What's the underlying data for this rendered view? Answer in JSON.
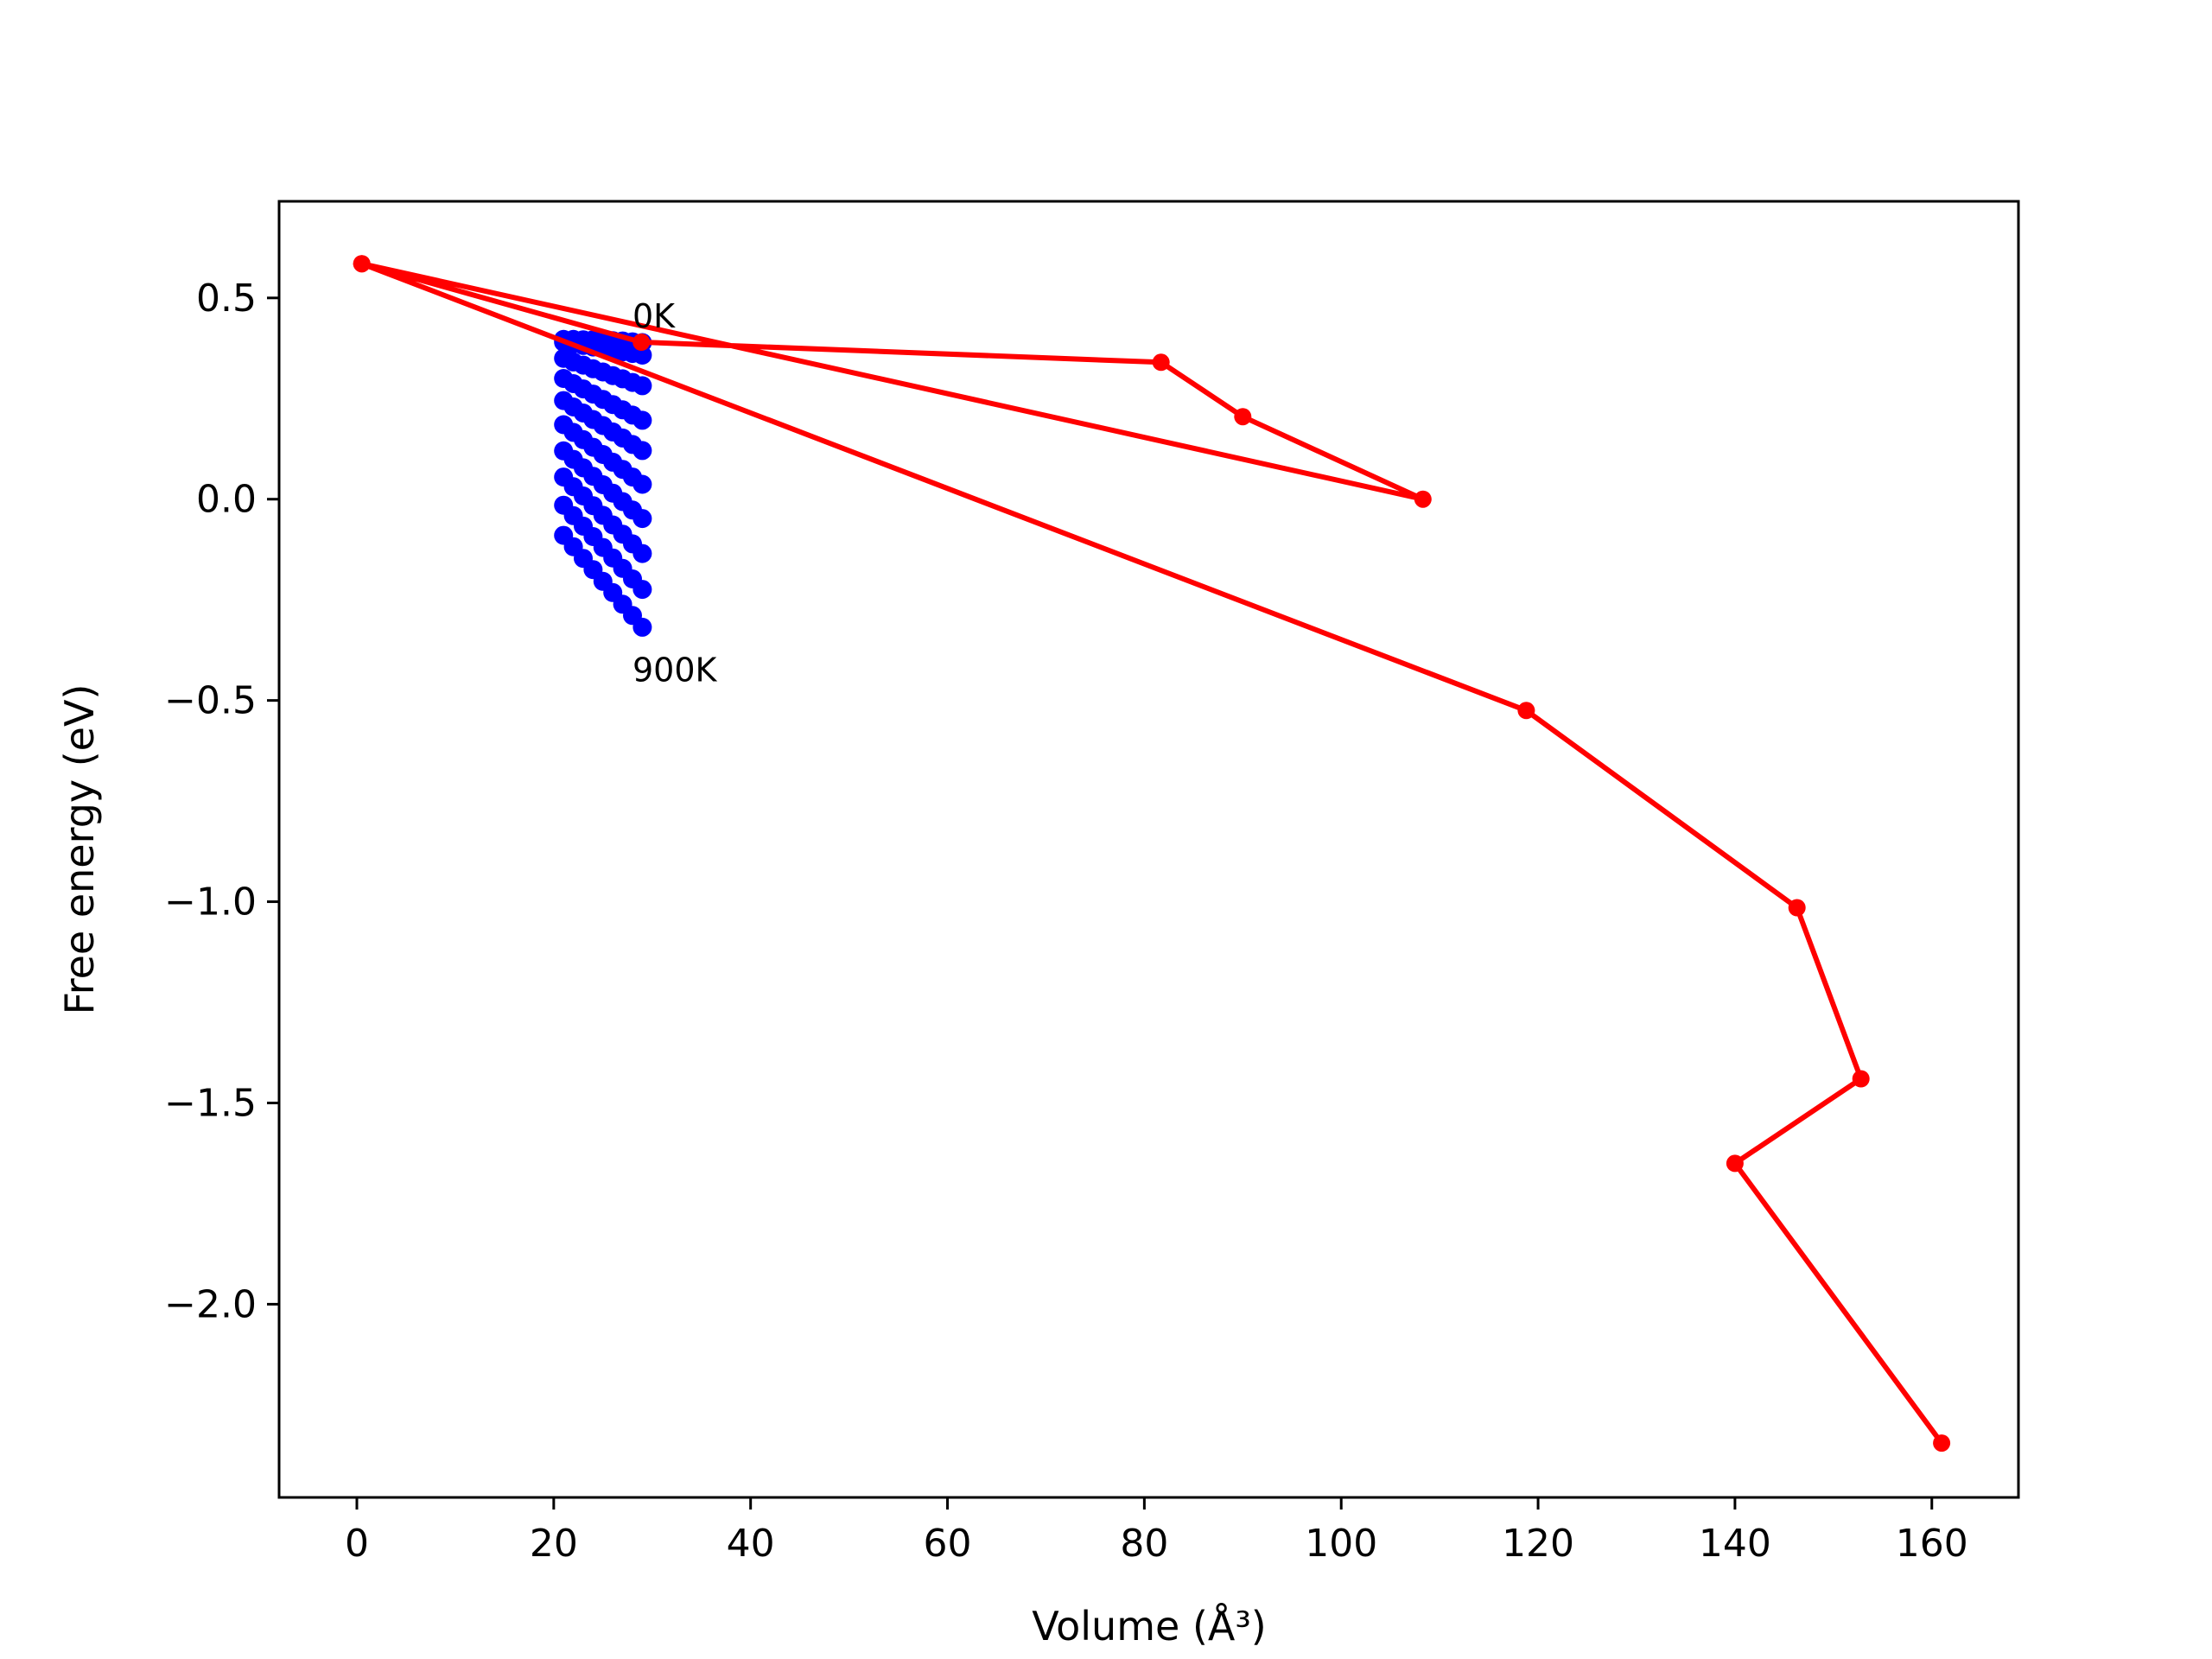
{
  "chart_data": {
    "type": "scatter",
    "xlabel": "Volume (Å³)",
    "ylabel": "Free energy (eV)",
    "xlim": [
      -7.9,
      168.8
    ],
    "ylim": [
      -2.48,
      0.74
    ],
    "x_ticks": [
      0,
      20,
      40,
      60,
      80,
      100,
      120,
      140,
      160
    ],
    "x_tick_labels": [
      "0",
      "20",
      "40",
      "60",
      "80",
      "100",
      "120",
      "140",
      "160"
    ],
    "y_ticks": [
      0.5,
      0.0,
      -0.5,
      -1.0,
      -1.5,
      -2.0
    ],
    "y_tick_labels": [
      "0.5",
      "0.0",
      "−0.5",
      "−1.0",
      "−1.5",
      "−2.0"
    ],
    "grid": false,
    "colors": {
      "red_series": "#ff0000",
      "blue_series": "#0000ff"
    },
    "annotations": [
      {
        "text": "0K",
        "x": 28.0,
        "y": 0.44
      },
      {
        "text": "900K",
        "x": 28.0,
        "y": -0.44
      }
    ],
    "series": [
      {
        "color": "#ff0000",
        "style": "line-markers",
        "x": [
          0.5,
          28.9,
          81.7,
          90.0,
          108.3,
          0.5,
          118.8,
          146.3,
          152.8,
          140.0,
          161.0
        ],
        "y": [
          0.585,
          0.39,
          0.34,
          0.205,
          0.0,
          0.585,
          -0.525,
          -1.015,
          -1.44,
          -1.65,
          -2.345
        ]
      },
      {
        "color": "#0000ff",
        "style": "line-markers",
        "x": [
          21.0,
          22.0,
          23.0,
          24.0,
          25.0,
          26.0,
          27.0,
          28.0,
          29.0
        ],
        "y": [
          0.397,
          0.397,
          0.396,
          0.396,
          0.395,
          0.394,
          0.393,
          0.391,
          0.389
        ]
      },
      {
        "color": "#0000ff",
        "style": "line-markers",
        "x": [
          21.0,
          22.0,
          23.0,
          24.0,
          25.0,
          26.0,
          27.0,
          28.0,
          29.0
        ],
        "y": [
          0.39,
          0.386,
          0.382,
          0.378,
          0.374,
          0.37,
          0.366,
          0.362,
          0.358
        ]
      },
      {
        "color": "#0000ff",
        "style": "line-markers",
        "x": [
          21.0,
          22.0,
          23.0,
          24.0,
          25.0,
          26.0,
          27.0,
          28.0,
          29.0
        ],
        "y": [
          0.35,
          0.341,
          0.333,
          0.324,
          0.316,
          0.307,
          0.299,
          0.29,
          0.282
        ]
      },
      {
        "color": "#0000ff",
        "style": "line-markers",
        "x": [
          21.0,
          22.0,
          23.0,
          24.0,
          25.0,
          26.0,
          27.0,
          28.0,
          29.0
        ],
        "y": [
          0.3,
          0.287,
          0.274,
          0.261,
          0.248,
          0.235,
          0.222,
          0.209,
          0.196
        ]
      },
      {
        "color": "#0000ff",
        "style": "line-markers",
        "x": [
          21.0,
          22.0,
          23.0,
          24.0,
          25.0,
          26.0,
          27.0,
          28.0,
          29.0
        ],
        "y": [
          0.245,
          0.229,
          0.214,
          0.198,
          0.183,
          0.167,
          0.152,
          0.136,
          0.121
        ]
      },
      {
        "color": "#0000ff",
        "style": "line-markers",
        "x": [
          21.0,
          22.0,
          23.0,
          24.0,
          25.0,
          26.0,
          27.0,
          28.0,
          29.0
        ],
        "y": [
          0.185,
          0.166,
          0.148,
          0.129,
          0.111,
          0.092,
          0.074,
          0.055,
          0.037
        ]
      },
      {
        "color": "#0000ff",
        "style": "line-markers",
        "x": [
          21.0,
          22.0,
          23.0,
          24.0,
          25.0,
          26.0,
          27.0,
          28.0,
          29.0
        ],
        "y": [
          0.12,
          0.099,
          0.078,
          0.057,
          0.036,
          0.015,
          -0.006,
          -0.027,
          -0.048
        ]
      },
      {
        "color": "#0000ff",
        "style": "line-markers",
        "x": [
          21.0,
          22.0,
          23.0,
          24.0,
          25.0,
          26.0,
          27.0,
          28.0,
          29.0
        ],
        "y": [
          0.055,
          0.031,
          0.008,
          -0.016,
          -0.04,
          -0.064,
          -0.087,
          -0.111,
          -0.135
        ]
      },
      {
        "color": "#0000ff",
        "style": "line-markers",
        "x": [
          21.0,
          22.0,
          23.0,
          24.0,
          25.0,
          26.0,
          27.0,
          28.0,
          29.0
        ],
        "y": [
          -0.015,
          -0.041,
          -0.067,
          -0.093,
          -0.12,
          -0.146,
          -0.172,
          -0.198,
          -0.224
        ]
      },
      {
        "color": "#0000ff",
        "style": "line-markers",
        "x": [
          21.0,
          22.0,
          23.0,
          24.0,
          25.0,
          26.0,
          27.0,
          28.0,
          29.0
        ],
        "y": [
          -0.09,
          -0.118,
          -0.147,
          -0.175,
          -0.204,
          -0.232,
          -0.261,
          -0.289,
          -0.318
        ]
      }
    ]
  }
}
